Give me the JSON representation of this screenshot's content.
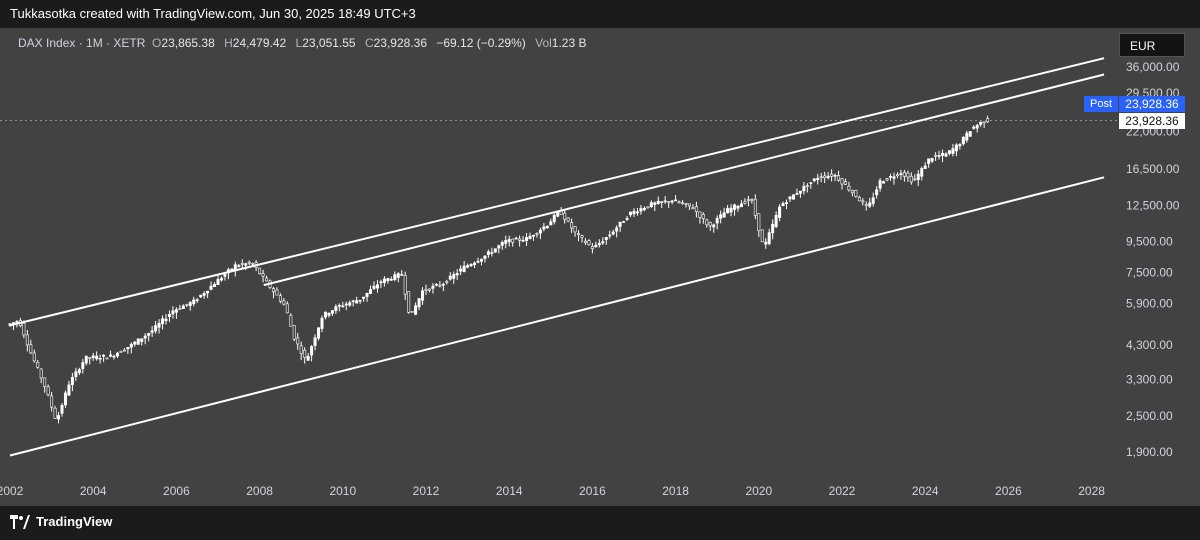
{
  "header": {
    "text": "Tukkasotka created with TradingView.com, Jun 30, 2025 18:49 UTC+3"
  },
  "legend": {
    "symbol": "DAX Index · 1M · XETR",
    "o_label": "O",
    "o": "23,865.38",
    "h_label": "H",
    "h": "24,479.42",
    "l_label": "L",
    "l": "23,051.55",
    "c_label": "C",
    "c": "23,928.36",
    "change": "−69.12 (−0.29%)",
    "vol_label": "Vol",
    "vol": "1.23 B"
  },
  "currency": "EUR",
  "post_label": "Post",
  "last_price": "23,928.36",
  "footer": {
    "brand": "TradingView"
  },
  "colors": {
    "background": "#424242",
    "frame": "#1b1b1b",
    "candle": "#ffffff",
    "accent": "#2962ff"
  },
  "chart_data": {
    "type": "candlestick",
    "y_scale": "log",
    "x_ticks": [
      "2002",
      "2004",
      "2006",
      "2008",
      "2010",
      "2012",
      "2014",
      "2016",
      "2018",
      "2020",
      "2022",
      "2024",
      "2026",
      "2028"
    ],
    "y_ticks": [
      "36,000.00",
      "29,500.00",
      "22,000.00",
      "16,500.00",
      "12,500.00",
      "9,500.00",
      "7,500.00",
      "5,900.00",
      "4,300.00",
      "3,300.00",
      "2,500.00",
      "1,900.00"
    ],
    "price_path": [
      [
        2002.0,
        5000
      ],
      [
        2002.3,
        5200
      ],
      [
        2002.6,
        4000
      ],
      [
        2002.9,
        3200
      ],
      [
        2003.2,
        2400
      ],
      [
        2003.5,
        3200
      ],
      [
        2003.9,
        3900
      ],
      [
        2004.5,
        3950
      ],
      [
        2005.0,
        4300
      ],
      [
        2005.5,
        4800
      ],
      [
        2006.0,
        5600
      ],
      [
        2006.5,
        6000
      ],
      [
        2007.0,
        6900
      ],
      [
        2007.5,
        7900
      ],
      [
        2007.9,
        8050
      ],
      [
        2008.3,
        6800
      ],
      [
        2008.7,
        5800
      ],
      [
        2008.9,
        4600
      ],
      [
        2009.2,
        3800
      ],
      [
        2009.6,
        5400
      ],
      [
        2010.0,
        5800
      ],
      [
        2010.5,
        6100
      ],
      [
        2011.0,
        7000
      ],
      [
        2011.5,
        7400
      ],
      [
        2011.7,
        5300
      ],
      [
        2012.0,
        6500
      ],
      [
        2012.5,
        6900
      ],
      [
        2013.0,
        7800
      ],
      [
        2013.5,
        8500
      ],
      [
        2014.0,
        9500
      ],
      [
        2014.5,
        9700
      ],
      [
        2015.0,
        10800
      ],
      [
        2015.3,
        12000
      ],
      [
        2015.7,
        10000
      ],
      [
        2016.1,
        9000
      ],
      [
        2016.5,
        10000
      ],
      [
        2017.0,
        11800
      ],
      [
        2017.5,
        12600
      ],
      [
        2018.0,
        13000
      ],
      [
        2018.5,
        12300
      ],
      [
        2018.9,
        10600
      ],
      [
        2019.3,
        12000
      ],
      [
        2019.9,
        13200
      ],
      [
        2020.2,
        9000
      ],
      [
        2020.6,
        12500
      ],
      [
        2021.0,
        13800
      ],
      [
        2021.5,
        15500
      ],
      [
        2021.9,
        15800
      ],
      [
        2022.3,
        14000
      ],
      [
        2022.7,
        12200
      ],
      [
        2023.0,
        15000
      ],
      [
        2023.5,
        16100
      ],
      [
        2023.8,
        15000
      ],
      [
        2024.2,
        18000
      ],
      [
        2024.6,
        18500
      ],
      [
        2024.9,
        20000
      ],
      [
        2025.2,
        22500
      ],
      [
        2025.5,
        23928
      ]
    ],
    "trend_lines": [
      {
        "name": "upper channel",
        "start": [
          2002.0,
          5000
        ],
        "end": [
          2028.3,
          38500
        ]
      },
      {
        "name": "inner channel",
        "start": [
          2008.1,
          6800
        ],
        "end": [
          2028.3,
          34000
        ]
      },
      {
        "name": "lower channel",
        "start": [
          2002.0,
          1850
        ],
        "end": [
          2028.3,
          15500
        ]
      }
    ],
    "last_price": 23928.36,
    "grid": false
  }
}
